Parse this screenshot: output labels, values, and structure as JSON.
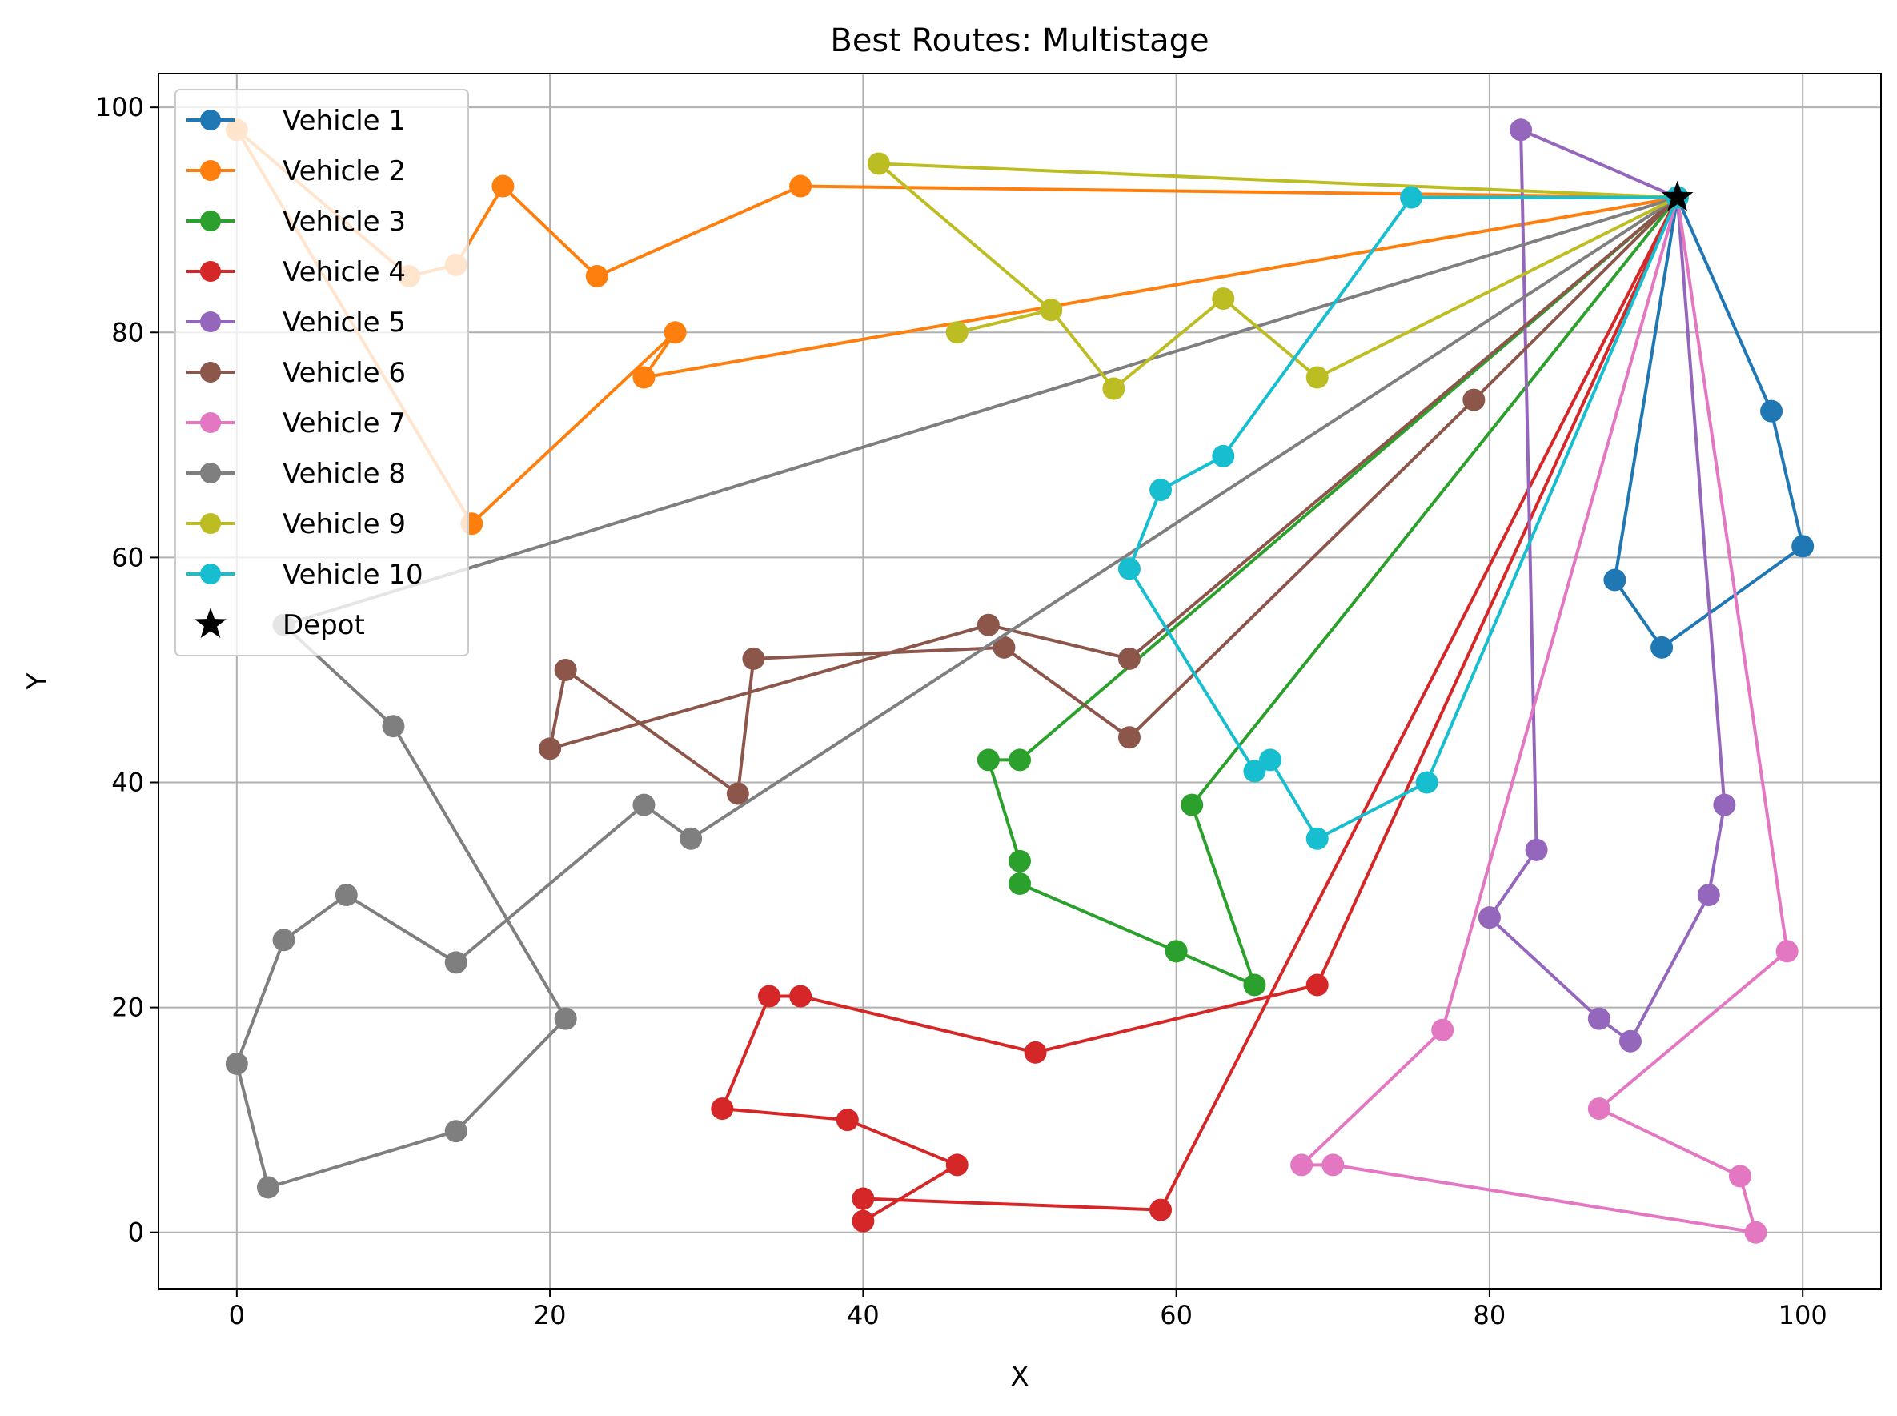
{
  "chart_data": {
    "type": "line",
    "title": "Best Routes: Multistage",
    "xlabel": "X",
    "ylabel": "Y",
    "xlim": [
      -5,
      105
    ],
    "ylim": [
      -5,
      103
    ],
    "xticks": [
      0,
      20,
      40,
      60,
      80,
      100
    ],
    "yticks": [
      0,
      20,
      40,
      60,
      80,
      100
    ],
    "grid": true,
    "legend_position": "top-left",
    "depot": {
      "name": "Depot",
      "x": 92,
      "y": 92,
      "color": "#000000",
      "marker": "star"
    },
    "series": [
      {
        "name": "Vehicle 1",
        "color": "#1f77b4",
        "points": [
          [
            92,
            92
          ],
          [
            98,
            73
          ],
          [
            100,
            61
          ],
          [
            91,
            52
          ],
          [
            88,
            58
          ],
          [
            92,
            92
          ]
        ]
      },
      {
        "name": "Vehicle 2",
        "color": "#ff7f0e",
        "points": [
          [
            92,
            92
          ],
          [
            36,
            93
          ],
          [
            23,
            85
          ],
          [
            17,
            93
          ],
          [
            14,
            86
          ],
          [
            11,
            85
          ],
          [
            0,
            98
          ],
          [
            15,
            63
          ],
          [
            28,
            80
          ],
          [
            26,
            76
          ],
          [
            92,
            92
          ]
        ]
      },
      {
        "name": "Vehicle 3",
        "color": "#2ca02c",
        "points": [
          [
            92,
            92
          ],
          [
            50,
            42
          ],
          [
            48,
            42
          ],
          [
            50,
            33
          ],
          [
            50,
            31
          ],
          [
            60,
            25
          ],
          [
            65,
            22
          ],
          [
            61,
            38
          ],
          [
            92,
            92
          ]
        ]
      },
      {
        "name": "Vehicle 4",
        "color": "#d62728",
        "points": [
          [
            92,
            92
          ],
          [
            69,
            22
          ],
          [
            51,
            16
          ],
          [
            36,
            21
          ],
          [
            34,
            21
          ],
          [
            31,
            11
          ],
          [
            39,
            10
          ],
          [
            46,
            6
          ],
          [
            40,
            1
          ],
          [
            40,
            3
          ],
          [
            59,
            2
          ],
          [
            92,
            92
          ]
        ]
      },
      {
        "name": "Vehicle 5",
        "color": "#9467bd",
        "points": [
          [
            92,
            92
          ],
          [
            82,
            98
          ],
          [
            83,
            34
          ],
          [
            80,
            28
          ],
          [
            87,
            19
          ],
          [
            89,
            17
          ],
          [
            94,
            30
          ],
          [
            95,
            38
          ],
          [
            92,
            92
          ]
        ]
      },
      {
        "name": "Vehicle 6",
        "color": "#8c564b",
        "points": [
          [
            92,
            92
          ],
          [
            57,
            51
          ],
          [
            48,
            54
          ],
          [
            20,
            43
          ],
          [
            21,
            50
          ],
          [
            32,
            39
          ],
          [
            33,
            51
          ],
          [
            49,
            52
          ],
          [
            57,
            44
          ],
          [
            79,
            74
          ],
          [
            92,
            92
          ]
        ]
      },
      {
        "name": "Vehicle 7",
        "color": "#e377c2",
        "points": [
          [
            92,
            92
          ],
          [
            99,
            25
          ],
          [
            87,
            11
          ],
          [
            96,
            5
          ],
          [
            97,
            0
          ],
          [
            70,
            6
          ],
          [
            68,
            6
          ],
          [
            77,
            18
          ],
          [
            92,
            92
          ]
        ]
      },
      {
        "name": "Vehicle 8",
        "color": "#7f7f7f",
        "points": [
          [
            92,
            92
          ],
          [
            3,
            54
          ],
          [
            10,
            45
          ],
          [
            21,
            19
          ],
          [
            14,
            9
          ],
          [
            2,
            4
          ],
          [
            0,
            15
          ],
          [
            3,
            26
          ],
          [
            7,
            30
          ],
          [
            14,
            24
          ],
          [
            26,
            38
          ],
          [
            29,
            35
          ],
          [
            92,
            92
          ]
        ]
      },
      {
        "name": "Vehicle 9",
        "color": "#bcbd22",
        "points": [
          [
            92,
            92
          ],
          [
            41,
            95
          ],
          [
            52,
            82
          ],
          [
            46,
            80
          ],
          [
            52,
            82
          ],
          [
            56,
            75
          ],
          [
            63,
            83
          ],
          [
            69,
            76
          ],
          [
            92,
            92
          ]
        ]
      },
      {
        "name": "Vehicle 10",
        "color": "#17becf",
        "points": [
          [
            92,
            92
          ],
          [
            75,
            92
          ],
          [
            63,
            69
          ],
          [
            59,
            66
          ],
          [
            57,
            59
          ],
          [
            65,
            41
          ],
          [
            66,
            42
          ],
          [
            69,
            35
          ],
          [
            76,
            40
          ],
          [
            92,
            92
          ]
        ]
      }
    ]
  }
}
